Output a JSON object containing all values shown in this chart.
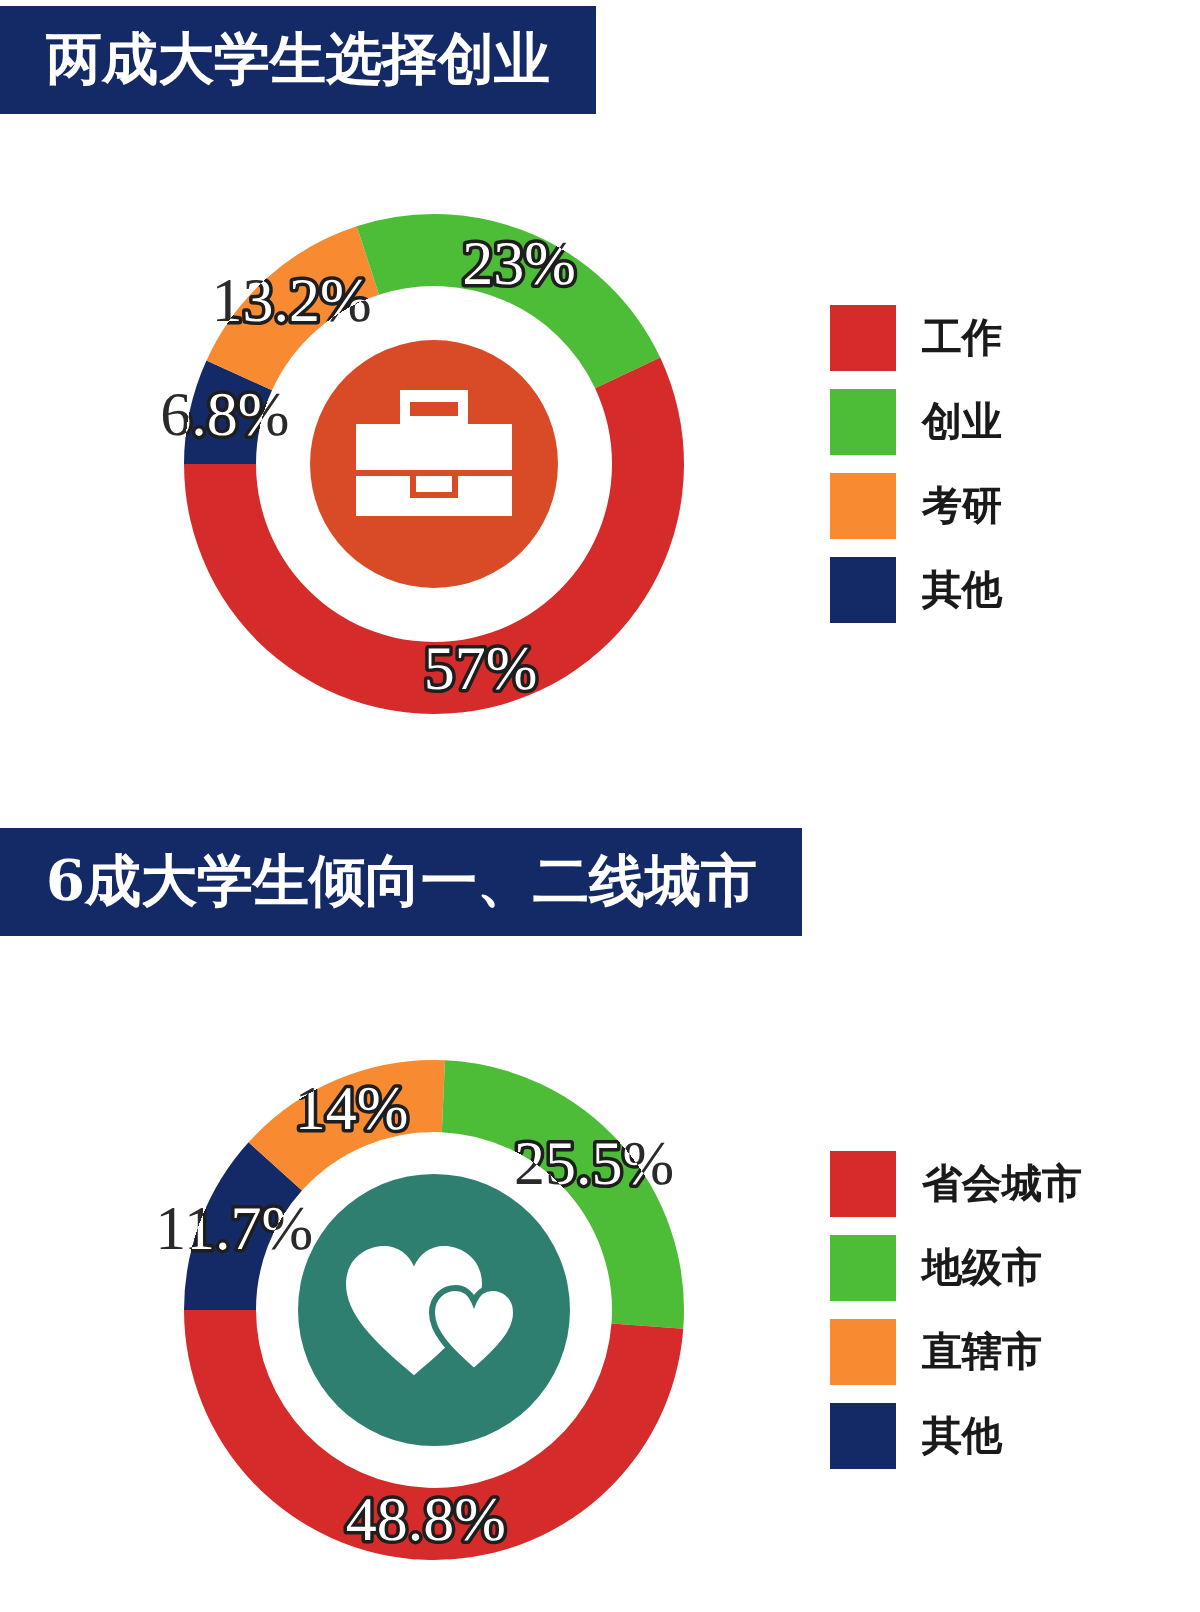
{
  "chart_data": [
    {
      "type": "donut",
      "title": "两成大学生选择创业",
      "categories": [
        "工作",
        "创业",
        "考研",
        "其他"
      ],
      "values": [
        57,
        23,
        13.2,
        6.8
      ],
      "colors": [
        "#d62b2b",
        "#4dbd38",
        "#f88b32",
        "#142a66"
      ],
      "value_labels": [
        "57%",
        "23%",
        "13.2%",
        "6.8%"
      ],
      "legend": "right"
    },
    {
      "type": "donut",
      "title": "6成大学生倾向一、二线城市",
      "categories": [
        "省会城市",
        "地级市",
        "直辖市",
        "其他"
      ],
      "values": [
        48.8,
        25.5,
        14,
        11.7
      ],
      "colors": [
        "#d62b2b",
        "#4dbd38",
        "#f88b32",
        "#142a66"
      ],
      "value_labels": [
        "48.8%",
        "25.5%",
        "14%",
        "11.7%"
      ],
      "legend": "right"
    }
  ]
}
